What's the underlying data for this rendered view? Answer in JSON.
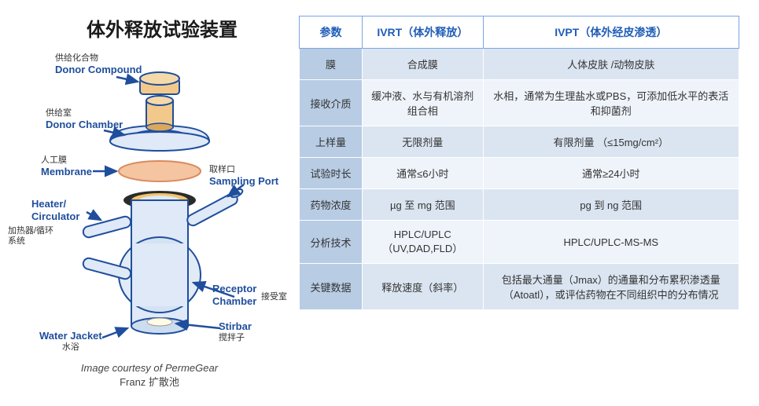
{
  "title": "体外释放试验装置",
  "diagram": {
    "labels": {
      "donor_compound_cn": "供给化合物",
      "donor_compound_en": "Donor Compound",
      "donor_chamber_cn": "供给室",
      "donor_chamber_en": "Donor Chamber",
      "membrane_cn": "人工膜",
      "membrane_en": "Membrane",
      "sampling_port_cn": "取样口",
      "sampling_port_en": "Sampling Port",
      "heater_en": "Heater/\nCirculator",
      "heater_cn": "加热器/循环系统",
      "receptor_chamber_en": "Receptor\nChamber",
      "receptor_chamber_cn": "接受室",
      "stirbar_en": "Stirbar",
      "stirbar_cn": "搅拌子",
      "water_jacket_en": "Water Jacket",
      "water_jacket_cn": "水浴"
    },
    "caption_line1": "Image courtesy of PermeGear",
    "caption_line2": "Franz 扩散池",
    "colors": {
      "outline": "#1f4e9c",
      "donor_fill": "#f2c98b",
      "donor_shadow": "#d9a85e",
      "donor_chamber_fill": "#dfe9f7",
      "membrane_fill": "#f5c4a0",
      "ring_outer": "#2b2b2b",
      "ring_inner": "#f3c46b",
      "cell_fill": "#dfe9f7",
      "port_fill": "#dfe9f7",
      "arrow": "#1f4e9c"
    }
  },
  "table": {
    "type": "table",
    "header_color": "#1f5db8",
    "header_border": "#7aa5e0",
    "param_col_bg": "#b8cce4",
    "row_odd_bg": "#dbe5f1",
    "row_even_bg": "#eff4fb",
    "columns": [
      "参数",
      "IVRT（体外释放）",
      "IVPT（体外经皮渗透）"
    ],
    "rows": [
      [
        "膜",
        "合成膜",
        "人体皮肤 /动物皮肤"
      ],
      [
        "接收介质",
        "缓冲液、水与有机溶剂组合相",
        "水相，通常为生理盐水或PBS，可添加低水平的表活和抑菌剂"
      ],
      [
        "上样量",
        "无限剂量",
        "有限剂量 （≤15mg/cm²）"
      ],
      [
        "试验时长",
        "通常≤6小时",
        "通常≥24小时"
      ],
      [
        "药物浓度",
        "µg 至 mg 范围",
        "pg 到 ng 范围"
      ],
      [
        "分析技术",
        "HPLC/UPLC（UV,DAD,FLD）",
        "HPLC/UPLC-MS-MS"
      ],
      [
        "关键数据",
        "释放速度（斜率）",
        "包括最大通量（Jmax）的通量和分布累积渗透量（Atoatl），或评估药物在不同组织中的分布情况"
      ]
    ]
  }
}
